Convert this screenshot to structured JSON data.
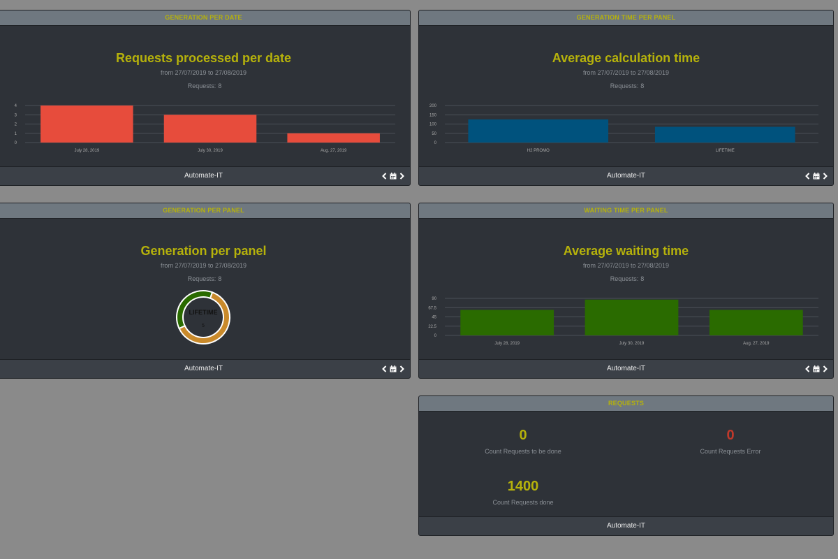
{
  "colors": {
    "accent": "#b6b20b",
    "red_bar": "#e74c3c",
    "blue_bar": "#00527d",
    "green_bar": "#2a6b00",
    "donut_orange": "#c98a2b",
    "donut_green": "#2a6b00",
    "error_red": "#c0392b"
  },
  "panels": {
    "gen_per_date": {
      "header": "GENERATION PER DATE",
      "title": "Requests processed per date",
      "subtitle": "from 27/07/2019 to 27/08/2019",
      "requests_label": "Requests:",
      "requests_value": "8",
      "footer": "Automate-IT"
    },
    "gen_time_per_panel": {
      "header": "GENERATION TIME PER PANEL",
      "title": "Average calculation time",
      "subtitle": "from 27/07/2019 to 27/08/2019",
      "requests_label": "Requests:",
      "requests_value": "8",
      "footer": "Automate-IT"
    },
    "gen_per_panel": {
      "header": "GENERATION PER PANEL",
      "title": "Generation per panel",
      "subtitle": "from 27/07/2019 to 27/08/2019",
      "requests_label": "Requests:",
      "requests_value": "8",
      "footer": "Automate-IT"
    },
    "waiting_time_per_panel": {
      "header": "WAITING TIME PER PANEL",
      "title": "Average waiting time",
      "subtitle": "from 27/07/2019 to 27/08/2019",
      "requests_label": "Requests:",
      "requests_value": "8",
      "footer": "Automate-IT"
    },
    "requests": {
      "header": "REQUESTS",
      "footer": "Automate-IT",
      "stats": [
        {
          "value": "0",
          "label": "Count Requests to be done"
        },
        {
          "value": "0",
          "label": "Count Requests Error"
        },
        {
          "value": "1400",
          "label": "Count Requests done"
        }
      ]
    }
  },
  "chart_data": [
    {
      "type": "bar",
      "categories": [
        "July 28, 2019",
        "July 30, 2019",
        "Aug. 27, 2019"
      ],
      "values": [
        4,
        3,
        1
      ],
      "ylim": [
        0,
        4
      ],
      "yticks": [
        "0",
        "1",
        "2",
        "3",
        "4"
      ],
      "color": "#e74c3c"
    },
    {
      "type": "bar",
      "categories": [
        "H2 PROMO",
        "LIFETIME"
      ],
      "values": [
        125,
        85
      ],
      "ylim": [
        0,
        200
      ],
      "yticks": [
        "0",
        "50",
        "100",
        "150",
        "200"
      ],
      "color": "#00527d"
    },
    {
      "type": "pie",
      "label": "LIFETIME",
      "value": "5",
      "slices": [
        {
          "label": "LIFETIME",
          "value": 5,
          "color": "#c98a2b"
        },
        {
          "label": "",
          "value": 3,
          "color": "#2a6b00"
        }
      ]
    },
    {
      "type": "bar",
      "categories": [
        "July 28, 2019",
        "July 30, 2019",
        "Aug. 27, 2019"
      ],
      "values": [
        62,
        87,
        62
      ],
      "ylim": [
        0,
        90
      ],
      "yticks": [
        "0",
        "22.5",
        "45",
        "67.5",
        "90"
      ],
      "color": "#2a6b00"
    }
  ]
}
